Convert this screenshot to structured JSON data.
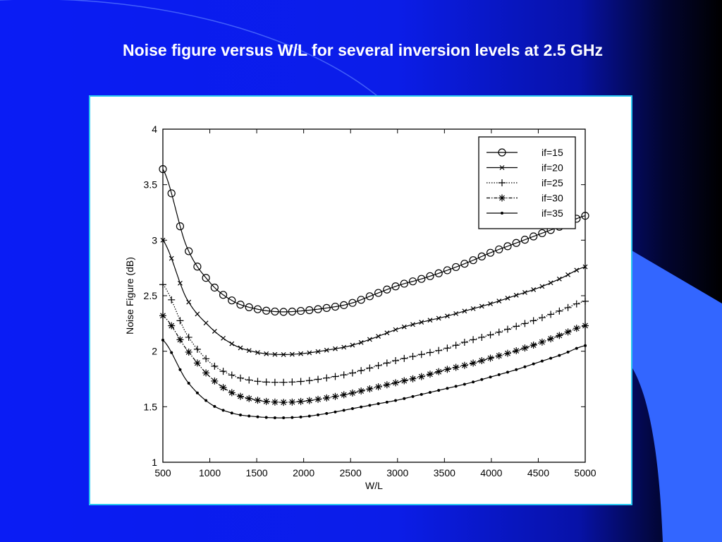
{
  "slide": {
    "title": "Noise figure versus W/L for several inversion levels at 2.5 GHz"
  },
  "colors": {
    "background": "#0a1cf5",
    "accent_shape": "#3366ff",
    "frame_border": "#29c6f0",
    "title": "#ffffff"
  },
  "chart_data": {
    "type": "line",
    "title": "",
    "xlabel": "W/L",
    "ylabel": "Noise Figure (dB)",
    "xlim": [
      500,
      5000
    ],
    "ylim": [
      1,
      4
    ],
    "xticks": [
      "500",
      "1000",
      "1500",
      "2000",
      "2500",
      "3000",
      "3500",
      "4000",
      "4500",
      "5000"
    ],
    "yticks": [
      "1",
      "1.5",
      "2",
      "2.5",
      "3",
      "3.5",
      "4"
    ],
    "grid": false,
    "legend": "top-right",
    "x": [
      500,
      750,
      1000,
      1250,
      1500,
      1750,
      2000,
      2250,
      2500,
      2750,
      3000,
      3250,
      3500,
      3750,
      4000,
      4250,
      4500,
      4750,
      5000
    ],
    "series": [
      {
        "name": "if=15",
        "marker": "circle",
        "line": "solid",
        "values": [
          3.64,
          2.95,
          2.62,
          2.45,
          2.38,
          2.355,
          2.365,
          2.39,
          2.43,
          2.51,
          2.59,
          2.65,
          2.72,
          2.8,
          2.89,
          2.97,
          3.05,
          3.13,
          3.22
        ]
      },
      {
        "name": "if=20",
        "marker": "x",
        "line": "solid",
        "values": [
          3.0,
          2.48,
          2.22,
          2.06,
          1.99,
          1.97,
          1.98,
          2.01,
          2.05,
          2.12,
          2.2,
          2.26,
          2.31,
          2.37,
          2.43,
          2.5,
          2.57,
          2.66,
          2.76
        ]
      },
      {
        "name": "if=25",
        "marker": "plus",
        "line": "dotted",
        "values": [
          2.6,
          2.16,
          1.9,
          1.78,
          1.73,
          1.72,
          1.73,
          1.76,
          1.8,
          1.86,
          1.92,
          1.97,
          2.02,
          2.09,
          2.15,
          2.22,
          2.29,
          2.37,
          2.45
        ]
      },
      {
        "name": "if=30",
        "marker": "star",
        "line": "dashdot",
        "values": [
          2.32,
          2.02,
          1.77,
          1.62,
          1.56,
          1.54,
          1.55,
          1.58,
          1.62,
          1.67,
          1.72,
          1.77,
          1.83,
          1.88,
          1.94,
          2.0,
          2.07,
          2.15,
          2.23
        ]
      },
      {
        "name": "if=35",
        "marker": "dot",
        "line": "solid",
        "values": [
          2.1,
          1.74,
          1.53,
          1.44,
          1.41,
          1.4,
          1.41,
          1.44,
          1.48,
          1.52,
          1.56,
          1.61,
          1.66,
          1.71,
          1.77,
          1.83,
          1.9,
          1.97,
          2.05
        ]
      }
    ]
  }
}
